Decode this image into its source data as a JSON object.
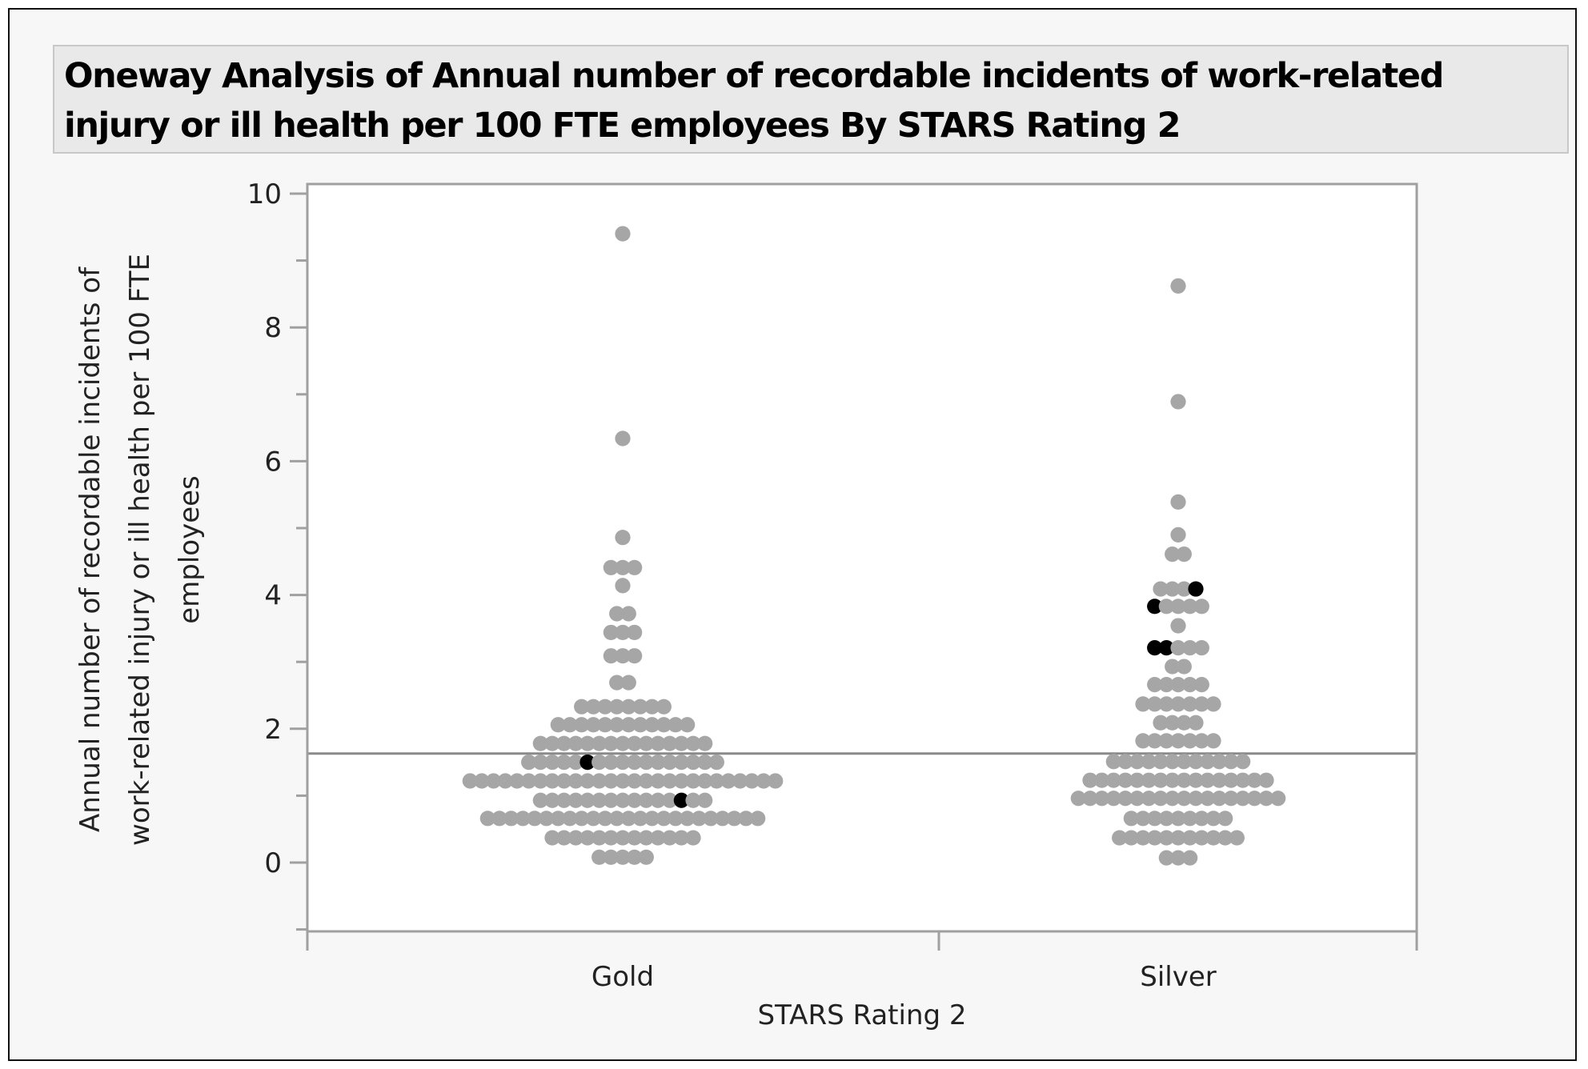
{
  "report": {
    "title": "Oneway Analysis of Annual number of recordable incidents of work-related injury or ill health per 100 FTE employees By STARS Rating 2"
  },
  "colors": {
    "point": "#a6a6a6",
    "selected_point": "#000000",
    "mean_line": "#8a8a8a",
    "frame": "#a0a0a0"
  },
  "chart_data": {
    "type": "scatter",
    "subtype": "stacked-dot (oneway)",
    "title": "Oneway Analysis of Annual number of recordable incidents of work-related injury or ill health per 100 FTE employees By STARS Rating 2",
    "xlabel": "STARS Rating 2",
    "ylabel_lines": [
      "Annual number of recordable incidents of",
      "work-related injury or ill health per 100 FTE",
      "employees"
    ],
    "categories": [
      "Gold",
      "Silver"
    ],
    "ylim": [
      -1,
      10.2
    ],
    "yticks": [
      0,
      2,
      4,
      6,
      8,
      10
    ],
    "ytick_labels": [
      "0",
      "2",
      "4",
      "6",
      "8",
      "10"
    ],
    "grand_mean": 1.63,
    "grid": false,
    "series": [
      {
        "name": "Gold",
        "rows": [
          {
            "y": 9.4,
            "count": 1,
            "selected": []
          },
          {
            "y": 6.34,
            "count": 1,
            "selected": []
          },
          {
            "y": 4.86,
            "count": 1,
            "selected": []
          },
          {
            "y": 4.41,
            "count": 3,
            "selected": []
          },
          {
            "y": 4.14,
            "count": 1,
            "selected": []
          },
          {
            "y": 3.72,
            "count": 2,
            "selected": []
          },
          {
            "y": 3.44,
            "count": 3,
            "selected": []
          },
          {
            "y": 3.09,
            "count": 3,
            "selected": []
          },
          {
            "y": 2.69,
            "count": 2,
            "selected": []
          },
          {
            "y": 2.33,
            "count": 8,
            "selected": []
          },
          {
            "y": 2.06,
            "count": 12,
            "selected": []
          },
          {
            "y": 1.78,
            "count": 15,
            "selected": []
          },
          {
            "y": 1.5,
            "count": 17,
            "selected": [
              5
            ]
          },
          {
            "y": 1.22,
            "count": 27,
            "selected": []
          },
          {
            "y": 0.93,
            "count": 15,
            "selected": [
              12
            ]
          },
          {
            "y": 0.66,
            "count": 24,
            "selected": []
          },
          {
            "y": 0.37,
            "count": 13,
            "selected": []
          },
          {
            "y": 0.08,
            "count": 5,
            "selected": []
          }
        ]
      },
      {
        "name": "Silver",
        "rows": [
          {
            "y": 8.62,
            "count": 1,
            "selected": []
          },
          {
            "y": 6.89,
            "count": 1,
            "selected": []
          },
          {
            "y": 5.39,
            "count": 1,
            "selected": []
          },
          {
            "y": 4.9,
            "count": 1,
            "selected": []
          },
          {
            "y": 4.61,
            "count": 2,
            "selected": []
          },
          {
            "y": 4.09,
            "count": 4,
            "selected": [
              3
            ]
          },
          {
            "y": 3.83,
            "count": 5,
            "selected": [
              0
            ]
          },
          {
            "y": 3.54,
            "count": 1,
            "selected": []
          },
          {
            "y": 3.21,
            "count": 5,
            "selected": [
              0,
              1
            ]
          },
          {
            "y": 2.93,
            "count": 2,
            "selected": []
          },
          {
            "y": 2.66,
            "count": 5,
            "selected": []
          },
          {
            "y": 2.37,
            "count": 7,
            "selected": []
          },
          {
            "y": 2.09,
            "count": 4,
            "selected": []
          },
          {
            "y": 1.82,
            "count": 7,
            "selected": []
          },
          {
            "y": 1.51,
            "count": 12,
            "selected": []
          },
          {
            "y": 1.23,
            "count": 16,
            "selected": []
          },
          {
            "y": 0.96,
            "count": 18,
            "selected": []
          },
          {
            "y": 0.66,
            "count": 9,
            "selected": []
          },
          {
            "y": 0.37,
            "count": 11,
            "selected": []
          },
          {
            "y": 0.07,
            "count": 3,
            "selected": []
          }
        ]
      }
    ]
  }
}
